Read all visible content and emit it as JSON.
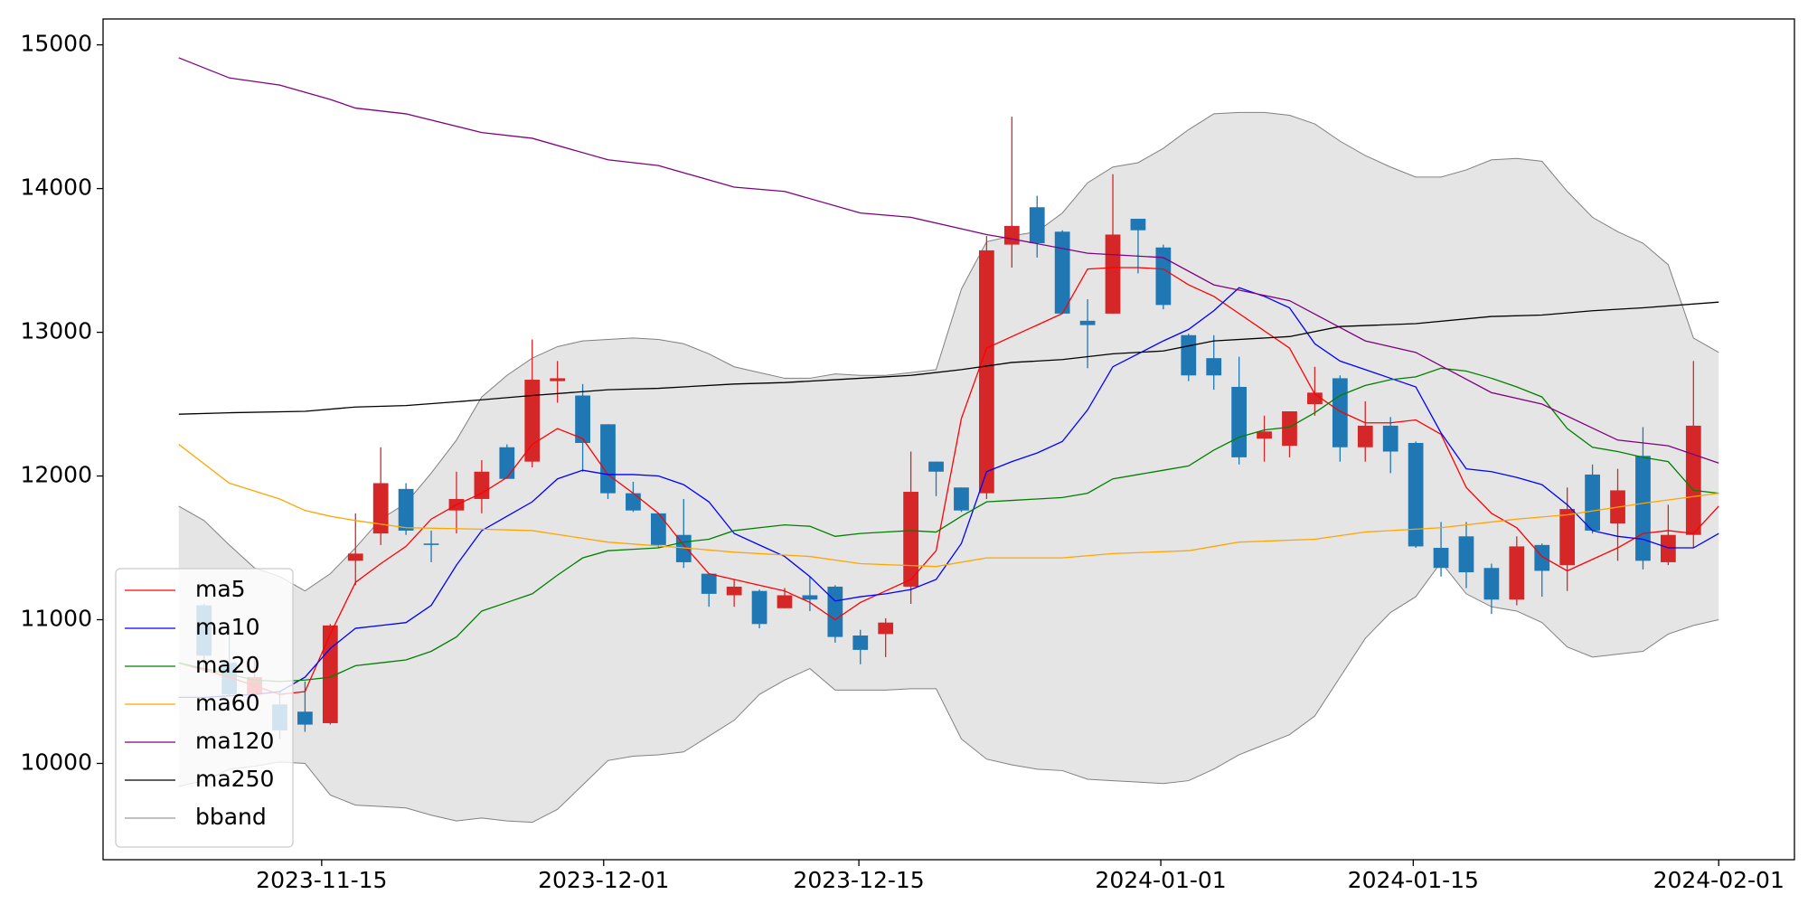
{
  "chart_data": {
    "type": "candlestick",
    "x": [
      1,
      2,
      3,
      4,
      5,
      6,
      7,
      8,
      9,
      10,
      11,
      12,
      13,
      14,
      15,
      16,
      17,
      18,
      19,
      20,
      21,
      22,
      23,
      24,
      25,
      26,
      27,
      28,
      29,
      30,
      31,
      32,
      33,
      34,
      35,
      36,
      37,
      38,
      39,
      40,
      41,
      42,
      43,
      44,
      45,
      46,
      47,
      48,
      49,
      50,
      51,
      52,
      53,
      54,
      55,
      56,
      57,
      58,
      59,
      60
    ],
    "open": [
      11100,
      10700,
      10480,
      10410,
      10360,
      10280,
      11410,
      11600,
      11910,
      11530,
      11760,
      11840,
      12200,
      12100,
      12660,
      12560,
      12360,
      11880,
      11740,
      11590,
      11320,
      11170,
      11200,
      11080,
      11170,
      11230,
      10890,
      10900,
      11230,
      12100,
      11920,
      11880,
      13610,
      13870,
      13700,
      13080,
      13130,
      13790,
      13590,
      12980,
      12820,
      12620,
      12260,
      12210,
      12500,
      12680,
      12200,
      12350,
      12230,
      11500,
      11580,
      11360,
      11140,
      11520,
      11380,
      12010,
      11670,
      12140,
      11400,
      11590
    ],
    "high": [
      11110,
      10900,
      10750,
      10500,
      10570,
      10970,
      11740,
      12200,
      11950,
      11620,
      12030,
      12110,
      12220,
      12950,
      12800,
      12640,
      12360,
      11960,
      11740,
      11840,
      11320,
      11280,
      11210,
      11220,
      11300,
      11240,
      10930,
      11010,
      12170,
      12100,
      11920,
      13670,
      14500,
      13950,
      13710,
      13230,
      14100,
      13790,
      13610,
      12990,
      12980,
      12830,
      12420,
      12450,
      12760,
      12700,
      12520,
      12410,
      12240,
      11680,
      11680,
      11390,
      11580,
      11530,
      11920,
      12080,
      12050,
      12340,
      11800,
      12800
    ],
    "low": [
      10640,
      10470,
      10470,
      10170,
      10220,
      10270,
      11240,
      11520,
      11590,
      11400,
      11600,
      11740,
      11980,
      12060,
      12510,
      12030,
      11840,
      11750,
      11500,
      11360,
      11090,
      11090,
      10940,
      11080,
      11060,
      10840,
      10690,
      10740,
      11110,
      11860,
      11750,
      11840,
      13450,
      13520,
      13130,
      12750,
      13130,
      13410,
      13160,
      12660,
      12600,
      12080,
      12100,
      12130,
      12420,
      12100,
      12100,
      12020,
      11500,
      11300,
      11220,
      11040,
      11100,
      11160,
      11200,
      11600,
      11410,
      11350,
      11380,
      11500
    ],
    "close": [
      10750,
      10480,
      10600,
      10230,
      10270,
      10960,
      11460,
      11950,
      11620,
      11520,
      11840,
      12030,
      11980,
      12670,
      12680,
      12230,
      11880,
      11760,
      11520,
      11400,
      11180,
      11230,
      10970,
      11170,
      11140,
      10880,
      10790,
      10980,
      11890,
      12030,
      11760,
      13570,
      13740,
      13620,
      13130,
      13050,
      13680,
      13710,
      13190,
      12700,
      12700,
      12130,
      12310,
      12450,
      12580,
      12200,
      12350,
      12170,
      11510,
      11360,
      11330,
      11140,
      11510,
      11340,
      11770,
      11620,
      11900,
      11410,
      11590,
      12350
    ],
    "up_color": "#d62728",
    "down_color": "#1f77b4",
    "series": [
      {
        "name": "ma5",
        "color": "#ff0000",
        "x": [
          0,
          1,
          2,
          3,
          4,
          5,
          6,
          7,
          8,
          9,
          10,
          11,
          12,
          13,
          14,
          15,
          16,
          17,
          18,
          19,
          20,
          21,
          22,
          23,
          24,
          25,
          26,
          27,
          28,
          29,
          30,
          31,
          32,
          33,
          34,
          35,
          36,
          37,
          38,
          39,
          40,
          41,
          42,
          43,
          44,
          45,
          46,
          47,
          48,
          49,
          50,
          51,
          52,
          53,
          54,
          55,
          56,
          57,
          58,
          59,
          60,
          61
        ],
        "values": [
          10700,
          10650,
          10600,
          10540,
          10480,
          10500,
          10900,
          11260,
          11390,
          11510,
          11700,
          11800,
          11880,
          11990,
          12220,
          12330,
          12260,
          12010,
          11880,
          11740,
          11520,
          11320,
          11280,
          11240,
          11200,
          11120,
          11000,
          11120,
          11200,
          11280,
          11480,
          12400,
          12890,
          12970,
          13050,
          13130,
          13440,
          13450,
          13450,
          13440,
          13330,
          13250,
          13130,
          13010,
          12890,
          12570,
          12450,
          12370,
          12370,
          12390,
          12290,
          11920,
          11740,
          11640,
          11440,
          11340,
          11420,
          11500,
          11600,
          11620,
          11600,
          11790
        ]
      },
      {
        "name": "ma10",
        "color": "#0000ff",
        "x": [
          0,
          1,
          2,
          3,
          4,
          5,
          6,
          7,
          8,
          9,
          10,
          11,
          12,
          13,
          14,
          15,
          16,
          17,
          18,
          19,
          20,
          21,
          22,
          23,
          24,
          25,
          26,
          27,
          28,
          29,
          30,
          31,
          32,
          33,
          34,
          35,
          36,
          37,
          38,
          39,
          40,
          41,
          42,
          43,
          44,
          45,
          46,
          47,
          48,
          49,
          50,
          51,
          52,
          53,
          54,
          55,
          56,
          57,
          58,
          59,
          60,
          61
        ],
        "values": [
          10460,
          10460,
          10470,
          10480,
          10500,
          10600,
          10800,
          10940,
          10960,
          10980,
          11100,
          11380,
          11620,
          11720,
          11820,
          11980,
          12040,
          12010,
          12010,
          12000,
          11940,
          11820,
          11600,
          11520,
          11440,
          11300,
          11130,
          11160,
          11180,
          11210,
          11280,
          11530,
          12030,
          12100,
          12160,
          12240,
          12460,
          12760,
          12850,
          12940,
          13020,
          13150,
          13310,
          13250,
          13170,
          12920,
          12800,
          12740,
          12680,
          12620,
          12300,
          12050,
          12030,
          11990,
          11940,
          11800,
          11620,
          11580,
          11560,
          11500,
          11500,
          11600
        ]
      },
      {
        "name": "ma20",
        "color": "#008000",
        "x": [
          0,
          1,
          2,
          3,
          4,
          5,
          6,
          7,
          8,
          9,
          10,
          11,
          12,
          13,
          14,
          15,
          16,
          17,
          18,
          19,
          20,
          21,
          22,
          23,
          24,
          25,
          26,
          27,
          28,
          29,
          30,
          31,
          32,
          33,
          34,
          35,
          36,
          37,
          38,
          39,
          40,
          41,
          42,
          43,
          44,
          45,
          46,
          47,
          48,
          49,
          50,
          51,
          52,
          53,
          54,
          55,
          56,
          57,
          58,
          59,
          60,
          61
        ],
        "values": [
          10700,
          10660,
          10620,
          10580,
          10570,
          10580,
          10600,
          10680,
          10700,
          10720,
          10780,
          10880,
          11060,
          11120,
          11180,
          11310,
          11430,
          11480,
          11490,
          11500,
          11540,
          11560,
          11620,
          11640,
          11660,
          11650,
          11580,
          11600,
          11610,
          11620,
          11610,
          11720,
          11820,
          11830,
          11840,
          11850,
          11880,
          11980,
          12010,
          12040,
          12070,
          12180,
          12270,
          12320,
          12340,
          12440,
          12560,
          12630,
          12670,
          12690,
          12750,
          12730,
          12680,
          12620,
          12550,
          12330,
          12200,
          12170,
          12130,
          12100,
          11900,
          11880
        ]
      },
      {
        "name": "ma60",
        "color": "#ffa500",
        "x": [
          0,
          2,
          4,
          5,
          6,
          7,
          9,
          12,
          14,
          17,
          20,
          22,
          25,
          27,
          30,
          32,
          35,
          37,
          40,
          41,
          42,
          45,
          47,
          50,
          53,
          55,
          58,
          61
        ],
        "values": [
          12220,
          11950,
          11840,
          11760,
          11720,
          11690,
          11640,
          11630,
          11620,
          11540,
          11500,
          11470,
          11440,
          11390,
          11370,
          11430,
          11430,
          11460,
          11480,
          11510,
          11540,
          11560,
          11610,
          11640,
          11700,
          11730,
          11810,
          11880
        ]
      },
      {
        "name": "ma120",
        "color": "#800080",
        "x": [
          0,
          2,
          4,
          6,
          7,
          9,
          12,
          14,
          17,
          19,
          22,
          24,
          27,
          29,
          32,
          33,
          36,
          39,
          41,
          44,
          47,
          49,
          52,
          54,
          57,
          59,
          61
        ],
        "values": [
          14910,
          14770,
          14720,
          14620,
          14560,
          14520,
          14390,
          14350,
          14200,
          14160,
          14010,
          13980,
          13830,
          13800,
          13680,
          13650,
          13550,
          13520,
          13330,
          13220,
          12940,
          12860,
          12580,
          12500,
          12250,
          12210,
          12090
        ]
      },
      {
        "name": "ma250",
        "color": "#000000",
        "x": [
          0,
          2,
          5,
          7,
          9,
          12,
          14,
          17,
          19,
          22,
          24,
          27,
          29,
          31,
          33,
          35,
          37,
          39,
          41,
          44,
          46,
          49,
          52,
          54,
          56,
          58,
          61
        ],
        "values": [
          12430,
          12440,
          12450,
          12480,
          12490,
          12530,
          12560,
          12600,
          12610,
          12640,
          12650,
          12680,
          12700,
          12740,
          12790,
          12810,
          12850,
          12870,
          12940,
          12970,
          13040,
          13060,
          13110,
          13120,
          13150,
          13170,
          13210
        ]
      },
      {
        "name": "bband",
        "color": "#808080",
        "fill_color": "#e5e5e5",
        "x": [
          0,
          1,
          2,
          3,
          4,
          5,
          6,
          7,
          8,
          9,
          10,
          11,
          12,
          13,
          14,
          15,
          16,
          17,
          18,
          19,
          20,
          21,
          22,
          23,
          24,
          25,
          26,
          27,
          28,
          29,
          30,
          31,
          32,
          33,
          34,
          35,
          36,
          37,
          38,
          39,
          40,
          41,
          42,
          43,
          44,
          45,
          46,
          47,
          48,
          49,
          50,
          51,
          52,
          53,
          54,
          55,
          56,
          57,
          58,
          59,
          60,
          61
        ],
        "upper": [
          11790,
          11690,
          11520,
          11360,
          11300,
          11200,
          11320,
          11500,
          11700,
          11810,
          12020,
          12250,
          12550,
          12700,
          12820,
          12900,
          12940,
          12950,
          12960,
          12950,
          12920,
          12850,
          12760,
          12720,
          12680,
          12680,
          12710,
          12700,
          12700,
          12720,
          12740,
          13300,
          13630,
          13670,
          13700,
          13830,
          14040,
          14150,
          14180,
          14280,
          14410,
          14520,
          14530,
          14530,
          14510,
          14450,
          14330,
          14230,
          14150,
          14080,
          14080,
          14130,
          14200,
          14210,
          14190,
          13980,
          13800,
          13700,
          13620,
          13470,
          12960,
          12860
        ],
        "lower": [
          9840,
          9880,
          9960,
          9980,
          10010,
          10000,
          9780,
          9710,
          9700,
          9690,
          9640,
          9600,
          9620,
          9600,
          9590,
          9680,
          9850,
          10020,
          10050,
          10060,
          10080,
          10190,
          10300,
          10480,
          10580,
          10660,
          10510,
          10510,
          10510,
          10520,
          10520,
          10170,
          10030,
          9990,
          9960,
          9950,
          9890,
          9880,
          9870,
          9860,
          9880,
          9960,
          10060,
          10130,
          10200,
          10330,
          10600,
          10870,
          11050,
          11160,
          11400,
          11180,
          11090,
          11060,
          10980,
          10810,
          10740,
          10760,
          10780,
          10900,
          10960,
          11000
        ]
      }
    ],
    "xlim": [
      -3,
      64
    ],
    "xticks": [
      {
        "value": 5.66,
        "label": "2023-11-15"
      },
      {
        "value": 16.83,
        "label": "2023-12-01"
      },
      {
        "value": 26.94,
        "label": "2023-12-15"
      },
      {
        "value": 38.9,
        "label": "2024-01-01"
      },
      {
        "value": 48.9,
        "label": "2024-01-15"
      },
      {
        "value": 61,
        "label": "2024-02-01"
      }
    ],
    "ylim": [
      9330,
      15180
    ],
    "yticks": [
      10000,
      11000,
      12000,
      13000,
      14000,
      15000
    ],
    "legend": "lower left"
  }
}
